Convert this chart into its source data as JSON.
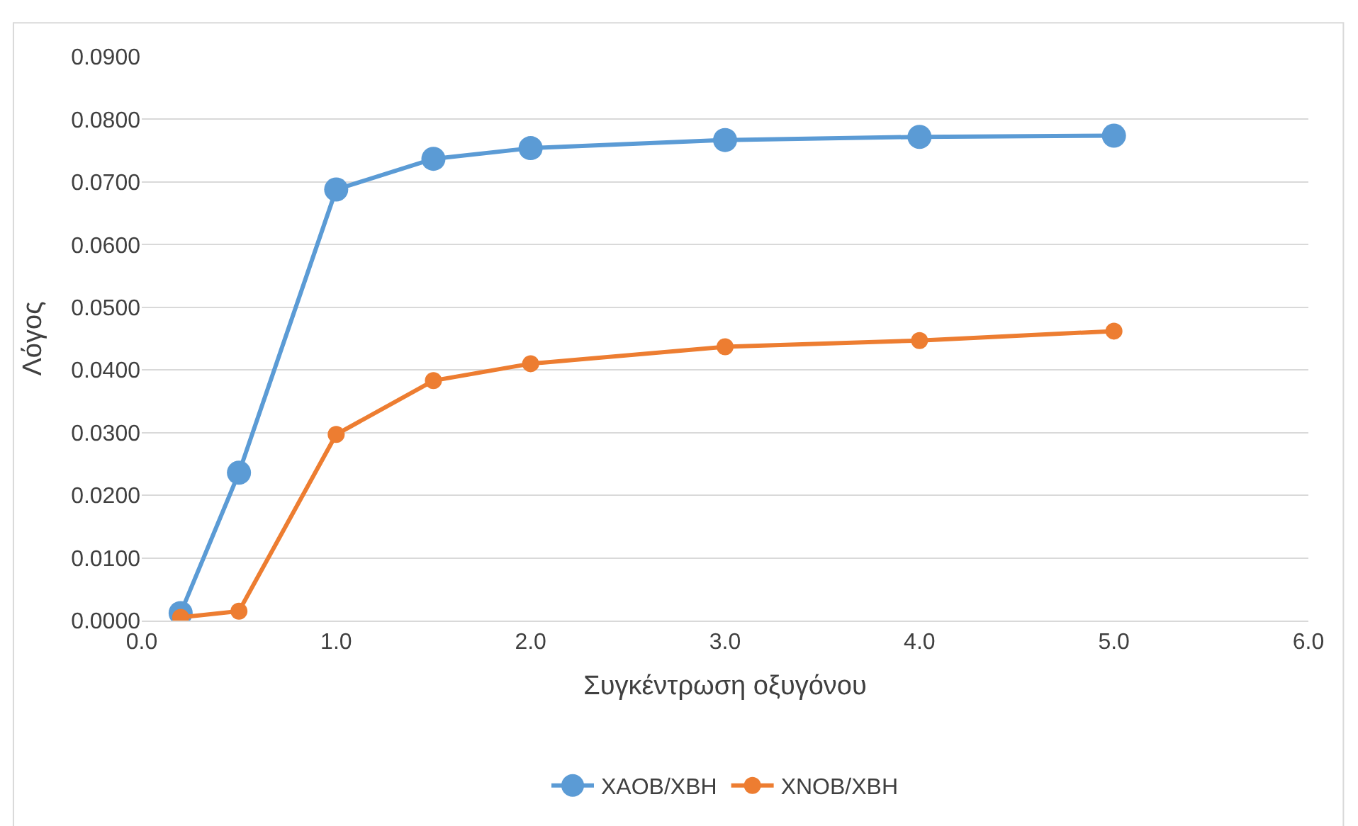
{
  "chart_data": {
    "type": "line",
    "xlabel": "Συγκέντρωση οξυγόνου",
    "ylabel": "Λόγος",
    "x": [
      0.2,
      0.5,
      1.0,
      1.5,
      2.0,
      3.0,
      4.0,
      5.0
    ],
    "series": [
      {
        "name": "XAOB/XBH",
        "color": "#5b9bd5",
        "values": [
          0.0012,
          0.0236,
          0.0688,
          0.0737,
          0.0754,
          0.0767,
          0.0772,
          0.0774
        ]
      },
      {
        "name": "XNOB/XBH",
        "color": "#ed7d31",
        "values": [
          0.0005,
          0.0015,
          0.0297,
          0.0383,
          0.041,
          0.0437,
          0.0447,
          0.0462
        ]
      }
    ],
    "xlim": [
      0,
      6
    ],
    "xticks": [
      {
        "value": 0,
        "label": "0.0"
      },
      {
        "value": 1,
        "label": "1.0"
      },
      {
        "value": 2,
        "label": "2.0"
      },
      {
        "value": 3,
        "label": "3.0"
      },
      {
        "value": 4,
        "label": "4.0"
      },
      {
        "value": 5,
        "label": "5.0"
      },
      {
        "value": 6,
        "label": "6.0"
      }
    ],
    "ylim": [
      0,
      0.09
    ],
    "yticks": [
      {
        "value": 0,
        "label": "0.0000"
      },
      {
        "value": 0.01,
        "label": "0.0100"
      },
      {
        "value": 0.02,
        "label": "0.0200"
      },
      {
        "value": 0.03,
        "label": "0.0300"
      },
      {
        "value": 0.04,
        "label": "0.0400"
      },
      {
        "value": 0.05,
        "label": "0.0500"
      },
      {
        "value": 0.06,
        "label": "0.0600"
      },
      {
        "value": 0.07,
        "label": "0.0700"
      },
      {
        "value": 0.08,
        "label": "0.0800"
      },
      {
        "value": 0.09,
        "label": "0.0900"
      }
    ],
    "grid": "y",
    "legend": "bottom",
    "marker": "circle",
    "line_style": "solid"
  }
}
